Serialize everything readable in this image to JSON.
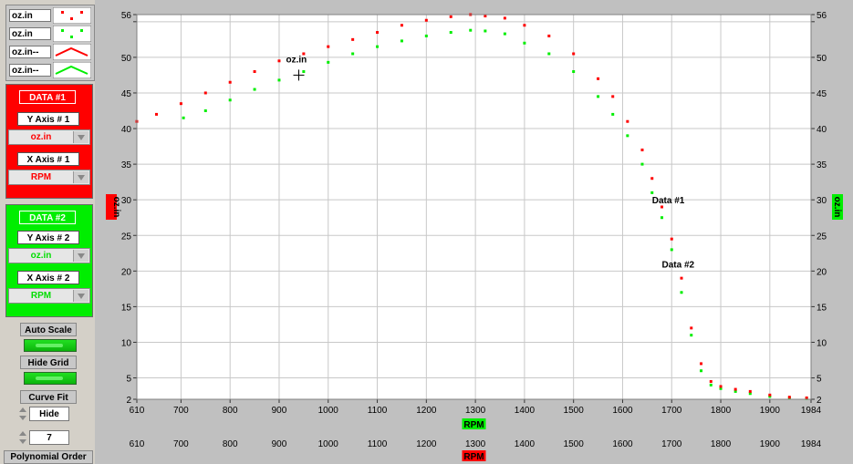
{
  "legend": {
    "items": [
      {
        "label": "oz.in",
        "style": "points",
        "color": "#ff0000"
      },
      {
        "label": "oz.in",
        "style": "points",
        "color": "#00ee00"
      },
      {
        "label": "oz.in--",
        "style": "line",
        "color": "#ff0000"
      },
      {
        "label": "oz.in--",
        "style": "line",
        "color": "#00ee00"
      }
    ]
  },
  "data1": {
    "title": "DATA #1",
    "y_axis_label": "Y Axis # 1",
    "y_value": "oz.in",
    "x_axis_label": "X Axis # 1",
    "x_value": "RPM"
  },
  "data2": {
    "title": "DATA #2",
    "y_axis_label": "Y Axis # 2",
    "y_value": "oz.in",
    "x_axis_label": "X Axis # 2",
    "x_value": "RPM"
  },
  "controls": {
    "auto_scale": "Auto Scale",
    "hide_grid": "Hide Grid",
    "curve_fit": "Curve Fit",
    "curve_fit_value": "Hide",
    "poly_order_value": "7",
    "poly_order_label": "Polynomial Order"
  },
  "chart_data": {
    "type": "scatter",
    "xlim": [
      610,
      1984
    ],
    "ylim": [
      2,
      56
    ],
    "x_ticks": [
      610,
      700,
      800,
      900,
      1000,
      1100,
      1200,
      1300,
      1400,
      1500,
      1600,
      1700,
      1800,
      1900,
      1984
    ],
    "y_ticks": [
      2,
      5,
      10,
      15,
      20,
      25,
      30,
      35,
      40,
      45,
      50,
      55,
      56
    ],
    "y_tick_labels": [
      "2",
      "5",
      "10",
      "15",
      "20",
      "25",
      "30",
      "35",
      "40",
      "45",
      "50",
      "",
      "56"
    ],
    "xlabel_top": "RPM",
    "xlabel_bottom": "RPM",
    "ylabel_left": "oz.in",
    "ylabel_right": "oz.in",
    "grid": true,
    "cursor": {
      "label": "oz.in",
      "x": 940,
      "y": 47.5
    },
    "annotations": [
      {
        "text": "Data #1",
        "x": 1660,
        "y": 29.5
      },
      {
        "text": "Data #2",
        "x": 1680,
        "y": 20.5
      }
    ],
    "series": [
      {
        "color": "#ff0000",
        "x": [
          610,
          650,
          700,
          750,
          800,
          850,
          900,
          950,
          1000,
          1050,
          1100,
          1150,
          1200,
          1250,
          1290,
          1320,
          1360,
          1400,
          1450,
          1500,
          1550,
          1580,
          1610,
          1640,
          1660,
          1680,
          1700,
          1720,
          1740,
          1760,
          1780,
          1800,
          1830,
          1860,
          1900,
          1940,
          1975
        ],
        "y": [
          41.0,
          42.0,
          43.5,
          45.0,
          46.5,
          48.0,
          49.5,
          50.5,
          51.5,
          52.5,
          53.5,
          54.5,
          55.2,
          55.7,
          56.0,
          55.8,
          55.5,
          54.5,
          53.0,
          50.5,
          47.0,
          44.5,
          41.0,
          37.0,
          33.0,
          29.0,
          24.5,
          19.0,
          12.0,
          7.0,
          4.5,
          3.8,
          3.4,
          3.1,
          2.6,
          2.3,
          2.2
        ]
      },
      {
        "color": "#00ee00",
        "x": [
          705,
          750,
          800,
          850,
          900,
          950,
          1000,
          1050,
          1100,
          1150,
          1200,
          1250,
          1290,
          1320,
          1360,
          1400,
          1450,
          1500,
          1550,
          1580,
          1610,
          1640,
          1660,
          1680,
          1700,
          1720,
          1740,
          1760,
          1780,
          1800,
          1830,
          1860,
          1900,
          1940,
          1975
        ],
        "y": [
          41.5,
          42.5,
          44.0,
          45.5,
          46.8,
          48.0,
          49.3,
          50.5,
          51.5,
          52.3,
          53.0,
          53.5,
          53.8,
          53.7,
          53.3,
          52.0,
          50.5,
          48.0,
          44.5,
          42.0,
          39.0,
          35.0,
          31.0,
          27.5,
          23.0,
          17.0,
          11.0,
          6.0,
          4.0,
          3.5,
          3.1,
          2.8,
          2.4,
          2.2,
          2.1
        ]
      }
    ]
  }
}
